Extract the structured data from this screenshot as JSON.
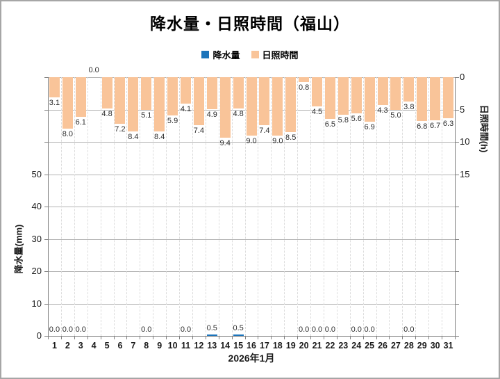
{
  "header": {
    "title": "降水量・日照時間（福山）"
  },
  "legend": {
    "items": [
      {
        "label": "降水量",
        "color": "#1b74bb"
      },
      {
        "label": "日照時間",
        "color": "#f9c499"
      }
    ]
  },
  "chart_data": {
    "type": "bar",
    "title": "降水量・日照時間（福山）",
    "x_label": "2026年1月",
    "categories": [
      1,
      2,
      3,
      4,
      5,
      6,
      7,
      8,
      9,
      10,
      11,
      12,
      13,
      14,
      15,
      16,
      17,
      18,
      19,
      20,
      21,
      22,
      23,
      24,
      25,
      26,
      27,
      28,
      29,
      30,
      31
    ],
    "series": [
      {
        "name": "降水量",
        "axis": "left",
        "unit": "mm",
        "color": "#1b74bb",
        "values": [
          0.0,
          0.0,
          0.0,
          null,
          null,
          null,
          null,
          0.0,
          null,
          null,
          0.0,
          null,
          0.5,
          null,
          0.5,
          null,
          null,
          null,
          null,
          0.0,
          0.0,
          0.0,
          null,
          0.0,
          0.0,
          null,
          null,
          0.0,
          null,
          null,
          null
        ]
      },
      {
        "name": "日照時間",
        "axis": "right",
        "unit": "h",
        "color": "#f9c499",
        "values": [
          3.1,
          8.0,
          6.1,
          0.0,
          4.8,
          7.2,
          8.4,
          5.1,
          8.4,
          5.9,
          4.1,
          7.4,
          4.9,
          9.4,
          4.8,
          9.0,
          7.4,
          9.0,
          8.5,
          0.8,
          4.5,
          6.5,
          5.8,
          5.6,
          6.9,
          4.3,
          5.0,
          3.8,
          6.8,
          6.7,
          6.3
        ]
      }
    ],
    "left_axis": {
      "title": "降水量(mm)",
      "ticks": [
        0,
        10,
        20,
        30,
        40,
        50
      ],
      "range": [
        0,
        80
      ],
      "reversed": false
    },
    "right_axis": {
      "title": "日照時間(h)",
      "ticks": [
        0,
        5,
        10,
        15
      ],
      "range": [
        0,
        40
      ],
      "reversed": true
    },
    "grid": true,
    "legend_position": "top",
    "value_label_format": "one-decimal"
  }
}
